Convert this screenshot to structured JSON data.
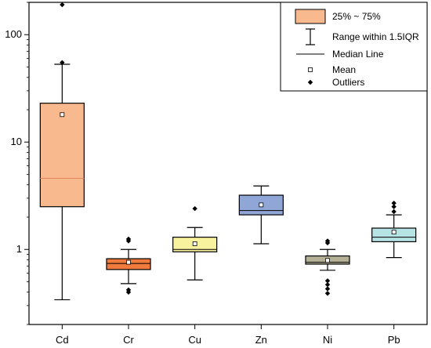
{
  "chart_data": {
    "type": "box",
    "y_scale": "log",
    "ylim": [
      0.2,
      200
    ],
    "y_ticks": [
      {
        "value": 1,
        "label": "1"
      },
      {
        "value": 10,
        "label": "10"
      },
      {
        "value": 100,
        "label": "100"
      }
    ],
    "categories": [
      "Cd",
      "Cr",
      "Cu",
      "Zn",
      "Ni",
      "Pb"
    ],
    "boxes": [
      {
        "category": "Cd",
        "q1": 2.5,
        "median": 4.6,
        "q3": 23,
        "mean": 18,
        "whisker_low": 0.34,
        "whisker_high": 53,
        "outliers": [
          55,
          190
        ],
        "color": "#f9b98f"
      },
      {
        "category": "Cr",
        "q1": 0.65,
        "median": 0.74,
        "q3": 0.82,
        "mean": 0.76,
        "whisker_low": 0.48,
        "whisker_high": 1.0,
        "outliers": [
          0.4,
          0.42,
          1.2,
          1.25
        ],
        "color": "#f07b3c"
      },
      {
        "category": "Cu",
        "q1": 0.95,
        "median": 1.0,
        "q3": 1.3,
        "mean": 1.13,
        "whisker_low": 0.52,
        "whisker_high": 1.6,
        "outliers": [
          2.4
        ],
        "color": "#f8f29e"
      },
      {
        "category": "Zn",
        "q1": 2.1,
        "median": 2.3,
        "q3": 3.2,
        "mean": 2.6,
        "whisker_low": 1.13,
        "whisker_high": 3.9,
        "outliers": [],
        "color": "#8fa6d6"
      },
      {
        "category": "Ni",
        "q1": 0.73,
        "median": 0.76,
        "q3": 0.87,
        "mean": 0.79,
        "whisker_low": 0.64,
        "whisker_high": 1.0,
        "outliers": [
          0.39,
          0.43,
          0.47,
          0.51,
          1.15,
          1.2
        ],
        "color": "#b4b095"
      },
      {
        "category": "Pb",
        "q1": 1.18,
        "median": 1.3,
        "q3": 1.58,
        "mean": 1.45,
        "whisker_low": 0.84,
        "whisker_high": 2.1,
        "outliers": [
          2.25,
          2.5,
          2.7
        ],
        "color": "#b6e3e4"
      }
    ],
    "legend": {
      "placement": "top-right",
      "items": [
        {
          "symbol": "box",
          "label": "25% ~ 75%"
        },
        {
          "symbol": "whisker",
          "label": "Range within 1.5IQR"
        },
        {
          "symbol": "line",
          "label": "Median Line"
        },
        {
          "symbol": "square",
          "label": "Mean"
        },
        {
          "symbol": "diamond",
          "label": "Outliers"
        }
      ]
    },
    "grid": false,
    "title": "",
    "xlabel": "",
    "ylabel": ""
  }
}
